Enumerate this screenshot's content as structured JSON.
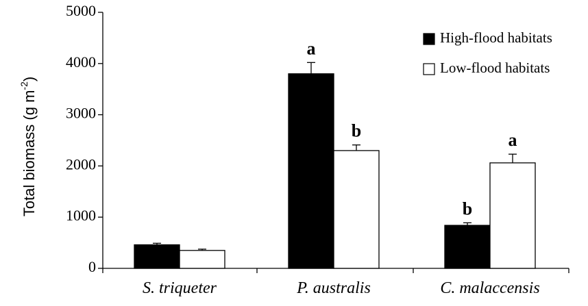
{
  "chart_data": {
    "type": "bar",
    "categories": [
      "S. triqueter",
      "P. australis",
      "C. malaccensis"
    ],
    "series": [
      {
        "name": "High-flood habitats",
        "color": "#000000",
        "values": [
          460,
          3800,
          840
        ],
        "errors": [
          30,
          220,
          50
        ],
        "letters": [
          "",
          "a",
          "b"
        ]
      },
      {
        "name": "Low-flood habitats",
        "color": "#ffffff",
        "values": [
          350,
          2300,
          2060
        ],
        "errors": [
          25,
          110,
          170
        ],
        "letters": [
          "",
          "b",
          "a"
        ]
      }
    ],
    "ylabel": "Total biomass (g m-2)",
    "ylabel_main": "Total biomass (g m",
    "ylabel_sup": "-2",
    "ylabel_close": ")",
    "ylim": [
      0,
      5000
    ],
    "yticks": [
      "0",
      "1000",
      "2000",
      "3000",
      "4000",
      "5000"
    ],
    "grid": false,
    "legend_position": "top-right"
  }
}
